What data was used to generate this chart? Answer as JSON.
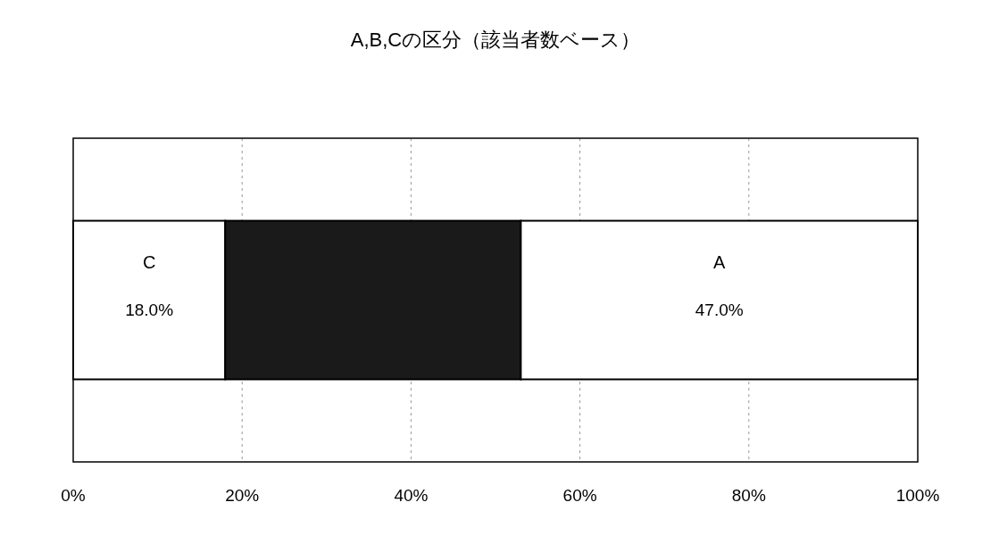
{
  "chart_data": {
    "type": "bar",
    "title": "A,B,Cの区分（該当者数ベース）",
    "orientation": "horizontal",
    "stacked": true,
    "categories": [
      null
    ],
    "series": [
      {
        "name": "C",
        "color": "#ffffff",
        "values": [
          18.0
        ],
        "value_labels": [
          "18.0%"
        ]
      },
      {
        "color": "#1a1a1a",
        "values": [
          35.0
        ],
        "value_labels": [
          null
        ]
      },
      {
        "name": "A",
        "color": "#ffffff",
        "values": [
          47.0
        ],
        "value_labels": [
          "47.0%"
        ]
      }
    ],
    "xlim": [
      0,
      100
    ],
    "xticks": [
      {
        "value": 0,
        "label": "0%"
      },
      {
        "value": 20,
        "label": "20%"
      },
      {
        "value": 40,
        "label": "40%"
      },
      {
        "value": 60,
        "label": "60%"
      },
      {
        "value": 80,
        "label": "80%"
      },
      {
        "value": 100,
        "label": "100%"
      }
    ],
    "grid": "x"
  }
}
